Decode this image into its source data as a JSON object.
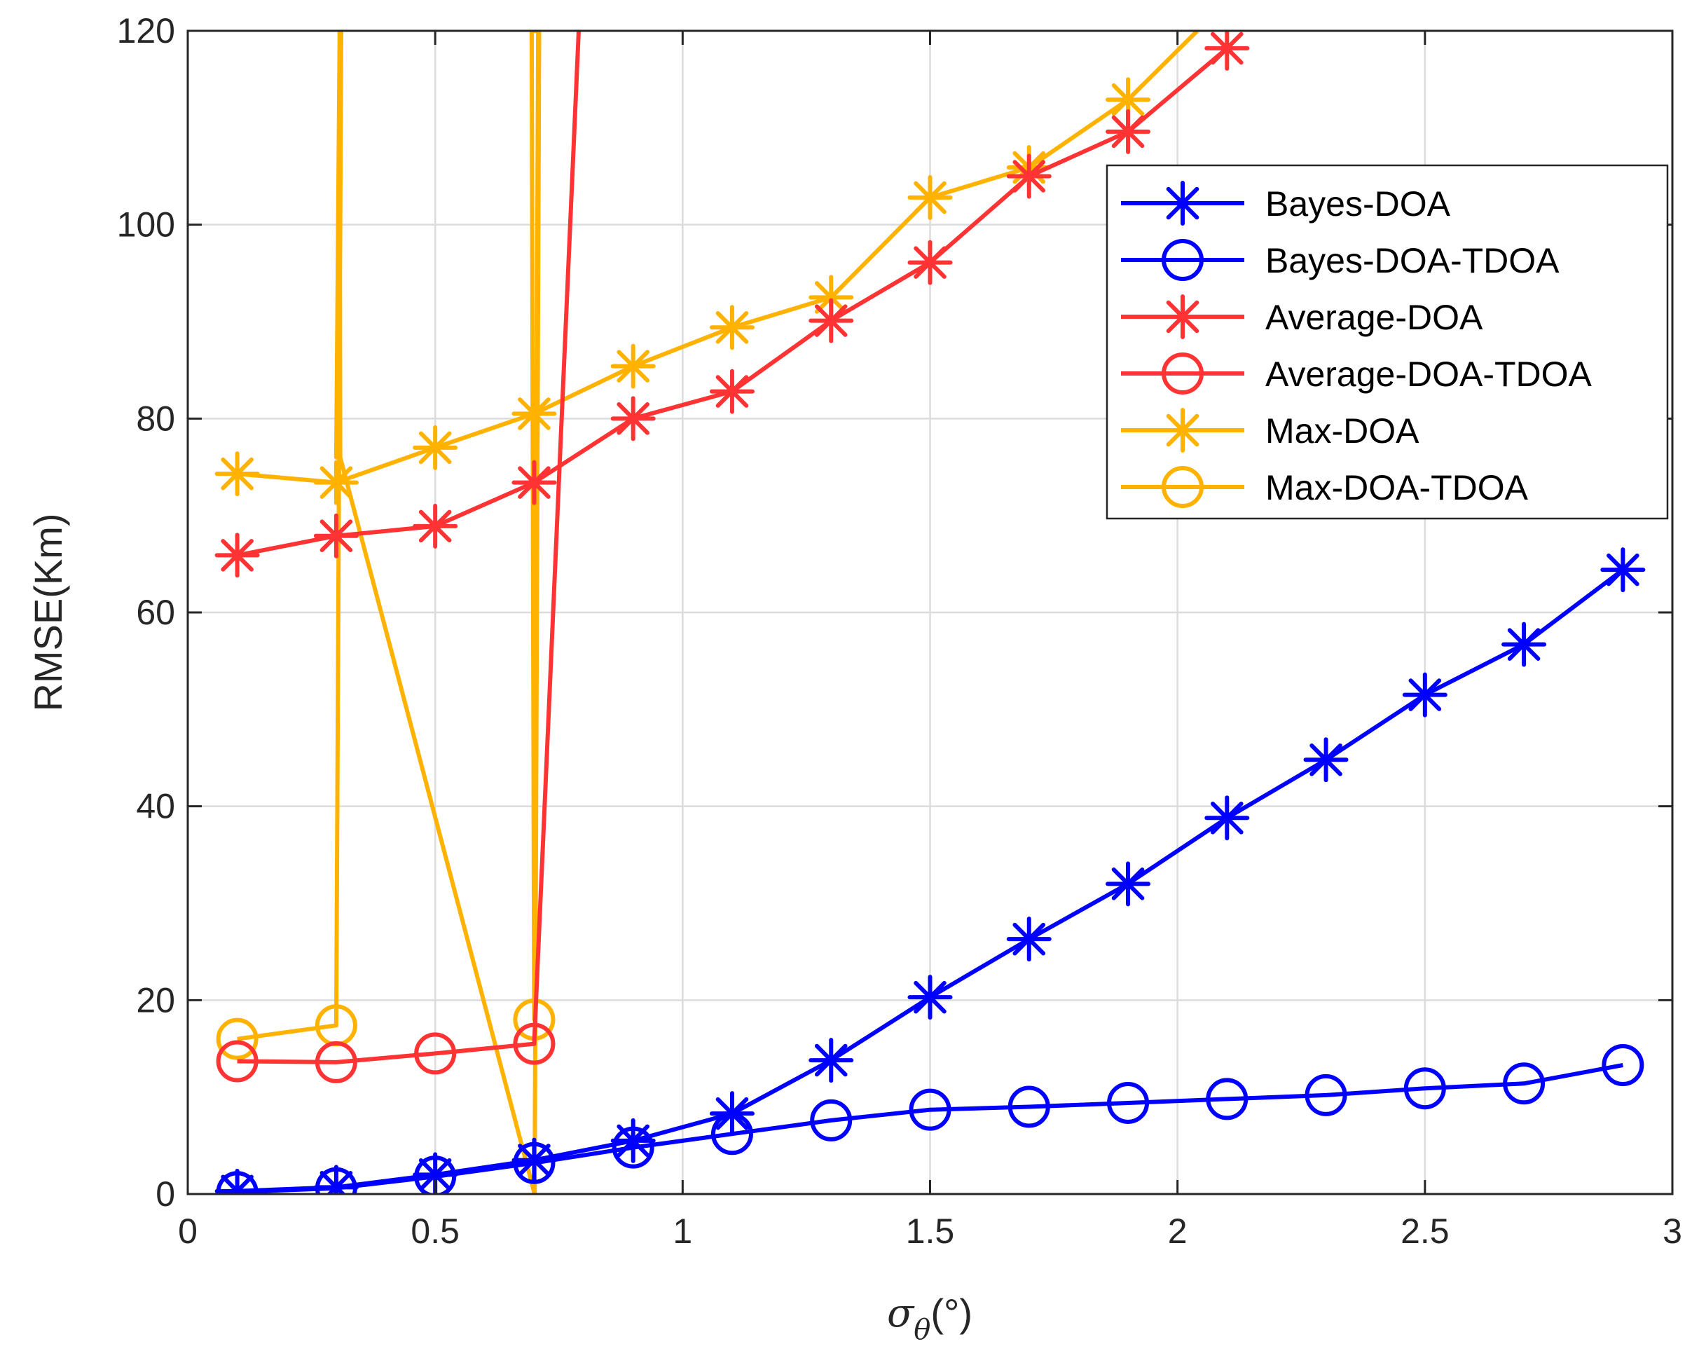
{
  "chart_data": {
    "type": "line",
    "title": "",
    "xlabel": "σθ(°)",
    "xlabel_parts": {
      "symbol": "σ",
      "subscript": "θ",
      "unit": "(°)"
    },
    "ylabel": "RMSE(Km)",
    "xlim": [
      0,
      3
    ],
    "ylim": [
      0,
      120
    ],
    "xticks": [
      0,
      0.5,
      1,
      1.5,
      2,
      2.5,
      3
    ],
    "xtick_labels": [
      "0",
      "0.5",
      "1",
      "1.5",
      "2",
      "2.5",
      "3"
    ],
    "yticks": [
      0,
      20,
      40,
      60,
      80,
      100,
      120
    ],
    "ytick_labels": [
      "0",
      "20",
      "40",
      "60",
      "80",
      "100",
      "120"
    ],
    "grid": true,
    "legend_position": "top-right",
    "series": [
      {
        "name": "Bayes-DOA",
        "color": "#0000ff",
        "marker": "asterisk",
        "x": [
          0.1,
          0.3,
          0.5,
          0.7,
          0.9,
          1.1,
          1.3,
          1.5,
          1.7,
          1.9,
          2.1,
          2.3,
          2.5,
          2.7,
          2.9
        ],
        "y": [
          0.3,
          0.7,
          2.0,
          3.5,
          5.5,
          8.3,
          13.8,
          20.3,
          26.3,
          32.0,
          38.8,
          44.8,
          51.5,
          56.7,
          64.4
        ]
      },
      {
        "name": "Bayes-DOA-TDOA",
        "color": "#0000ff",
        "marker": "circle",
        "x": [
          0.1,
          0.3,
          0.5,
          0.7,
          0.9,
          1.1,
          1.3,
          1.5,
          1.7,
          1.9,
          2.1,
          2.3,
          2.5,
          2.7,
          2.9
        ],
        "y": [
          0.2,
          0.6,
          1.8,
          3.2,
          4.8,
          6.2,
          7.6,
          8.7,
          9.0,
          9.4,
          9.8,
          10.2,
          10.9,
          11.4,
          13.3
        ]
      },
      {
        "name": "Average-DOA",
        "color": "#ff3333",
        "marker": "asterisk",
        "x": [
          0.1,
          0.3,
          0.5,
          0.7,
          0.9,
          1.1,
          1.3,
          1.5,
          1.7,
          1.9,
          2.1
        ],
        "y": [
          65.9,
          67.9,
          68.9,
          73.4,
          80.0,
          82.8,
          90.1,
          96.1,
          105.0,
          109.6,
          118.2
        ]
      },
      {
        "name": "Average-DOA-TDOA",
        "color": "#ff3333",
        "marker": "circle",
        "x": [
          0.1,
          0.3,
          0.5,
          0.7,
          0.79
        ],
        "y": [
          13.7,
          13.6,
          14.5,
          15.5,
          120
        ],
        "marker_count": 4
      },
      {
        "name": "Max-DOA",
        "color": "#ffb300",
        "marker": "asterisk",
        "x": [
          0.1,
          0.3,
          0.5,
          0.7,
          0.9,
          1.1,
          1.3,
          1.5,
          1.7,
          1.9,
          2.04
        ],
        "y": [
          74.3,
          73.4,
          77.0,
          80.5,
          85.4,
          89.4,
          92.5,
          102.8,
          105.9,
          112.9,
          120
        ],
        "marker_count": 10
      },
      {
        "name": "Max-DOA-TDOA",
        "color": "#ffb300",
        "marker": "circle",
        "x": [
          0.1,
          0.3,
          0.31,
          0.3,
          0.307,
          0.308,
          0.701,
          0.71,
          0.695,
          0.7,
          0.708,
          0.7
        ],
        "y": [
          16.0,
          17.4,
          120,
          76.0,
          120,
          76.0,
          0,
          120,
          120,
          18.0,
          120,
          120
        ],
        "marker_points": [
          [
            0.1,
            16.0
          ],
          [
            0.3,
            17.4
          ],
          [
            0.7,
            18.0
          ]
        ]
      }
    ]
  }
}
